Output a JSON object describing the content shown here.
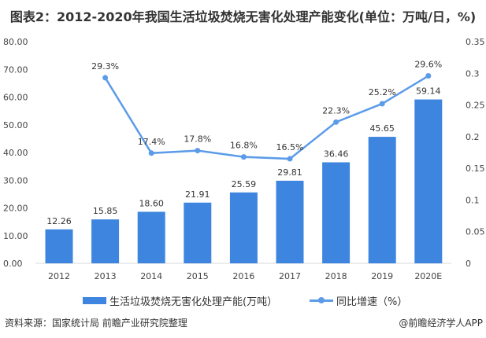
{
  "title": "图表2：2012-2020年我国生活垃圾焚烧无害化处理产能变化(单位：万吨/日，%)",
  "chart_data": {
    "type": "bar+line",
    "categories": [
      "2012",
      "2013",
      "2014",
      "2015",
      "2016",
      "2017",
      "2018",
      "2019",
      "2020E"
    ],
    "series": [
      {
        "name": "生活垃圾焚烧无害化处理产能(万吨）",
        "type": "bar",
        "axis": "left",
        "color": "#3e85df",
        "values": [
          12.26,
          15.85,
          18.6,
          21.91,
          25.59,
          29.81,
          36.46,
          45.65,
          59.14
        ],
        "labels": [
          "12.26",
          "15.85",
          "18.60",
          "21.91",
          "25.59",
          "29.81",
          "36.46",
          "45.65",
          "59.14"
        ]
      },
      {
        "name": "同比增速（%）",
        "type": "line",
        "axis": "right",
        "color": "#5b9be8",
        "values": [
          null,
          0.293,
          0.174,
          0.178,
          0.168,
          0.165,
          0.223,
          0.252,
          0.296
        ],
        "labels": [
          "",
          "29.3%",
          "17.4%",
          "17.8%",
          "16.8%",
          "16.5%",
          "22.3%",
          "25.2%",
          "29.6%"
        ]
      }
    ],
    "y_left": {
      "lim": [
        0,
        80
      ],
      "ticks": [
        "0.00",
        "10.00",
        "20.00",
        "30.00",
        "40.00",
        "50.00",
        "60.00",
        "70.00",
        "80.00"
      ]
    },
    "y_right": {
      "lim": [
        0,
        0.35
      ],
      "ticks": [
        "0",
        "0.05",
        "0.1",
        "0.15",
        "0.2",
        "0.25",
        "0.3",
        "0.35"
      ]
    },
    "grid": false,
    "legend": "bottom"
  },
  "footer": {
    "source": "资料来源：国家统计局 前瞻产业研究院整理",
    "credit": "@前瞻经济学人APP"
  }
}
